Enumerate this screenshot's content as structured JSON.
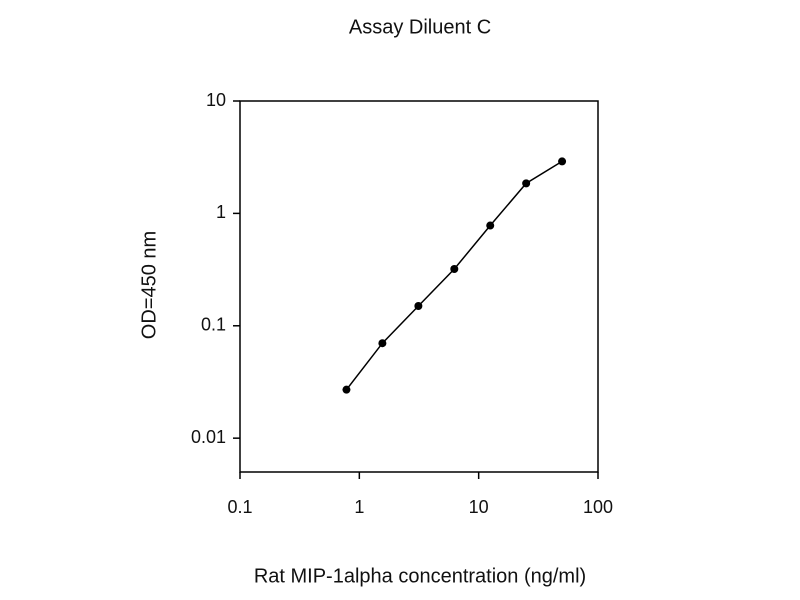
{
  "chart_data": {
    "type": "line",
    "title": "Assay Diluent C",
    "x_label": "Rat MIP-1alpha concentration (ng/ml)",
    "y_label": "OD=450 nm",
    "x": [
      0.78,
      1.56,
      3.125,
      6.25,
      12.5,
      25,
      50
    ],
    "values": [
      0.027,
      0.07,
      0.15,
      0.32,
      0.78,
      1.85,
      2.9
    ],
    "color": "#000000",
    "xlog": true,
    "ylog": true,
    "xlim": [
      0.1,
      100
    ],
    "xticks": [
      0.1,
      1,
      10,
      100
    ],
    "ylim": [
      0.005,
      10
    ],
    "yticks": [
      0.01,
      0.1,
      1,
      10
    ],
    "grid": false
  }
}
